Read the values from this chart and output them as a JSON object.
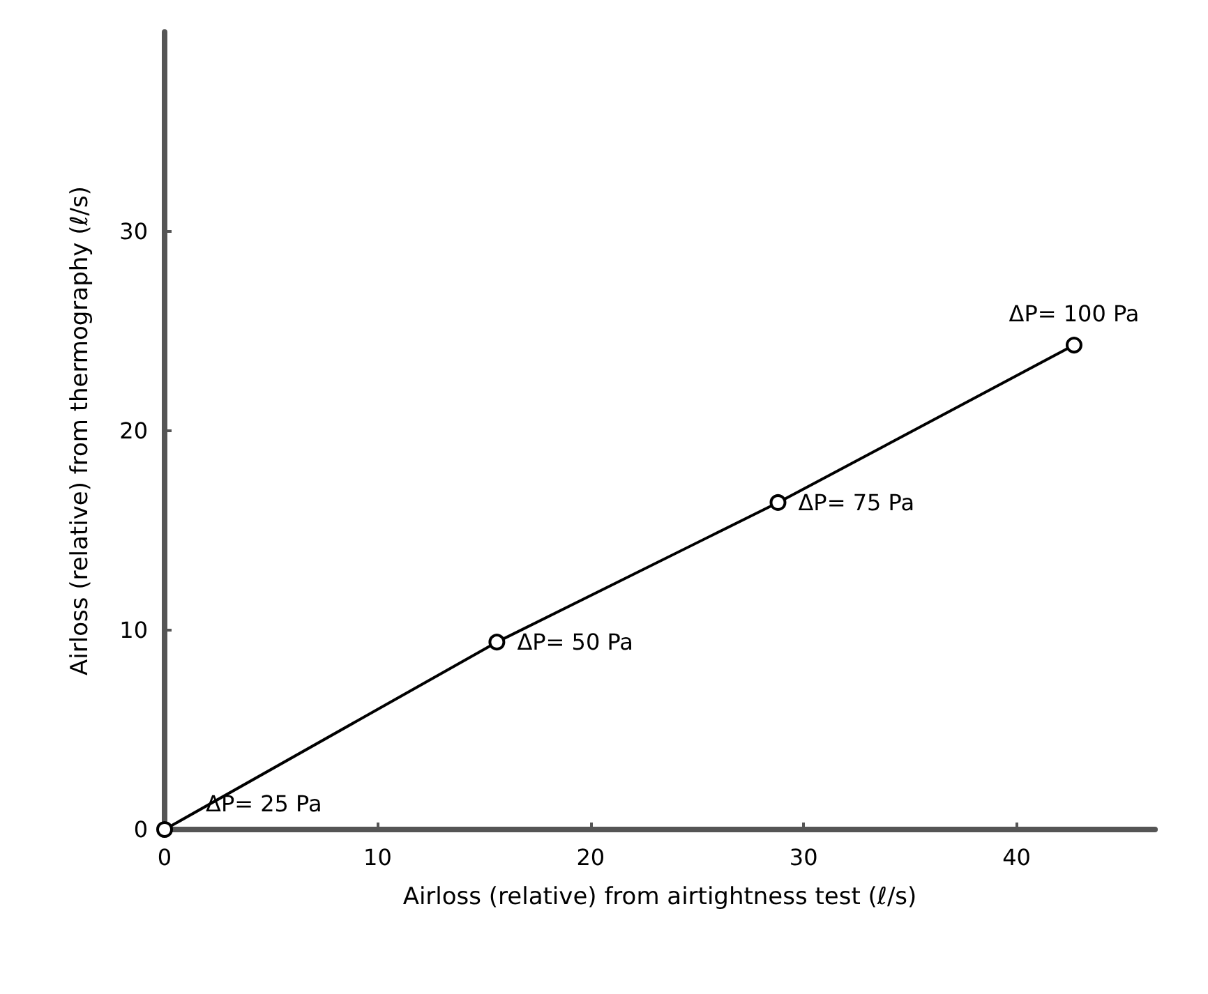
{
  "chart_data": {
    "type": "line",
    "xlabel": "Airloss (relative) from airtightness test (ℓ/s)",
    "ylabel": "Airloss (relative) from thermography (ℓ/s)",
    "x": [
      0,
      15.6,
      28.8,
      42.7
    ],
    "series": [
      {
        "color": "#000000",
        "values": [
          0,
          9.4,
          16.4,
          24.3
        ]
      }
    ],
    "annotations": [
      {
        "text": "ΔP= 25 Pa",
        "x": 0,
        "y": 0
      },
      {
        "text": "ΔP= 50 Pa",
        "x": 15.6,
        "y": 9.4
      },
      {
        "text": "ΔP= 75 Pa",
        "x": 28.8,
        "y": 16.4
      },
      {
        "text": "ΔP= 100 Pa",
        "x": 42.7,
        "y": 24.3
      }
    ],
    "xlim": [
      0,
      46.5
    ],
    "ylim": [
      0,
      40
    ],
    "xticks": [
      0,
      10,
      20,
      30,
      40
    ],
    "yticks": [
      0,
      10,
      20,
      30
    ],
    "marker": "circle",
    "line_style": "solid",
    "grid": false
  }
}
